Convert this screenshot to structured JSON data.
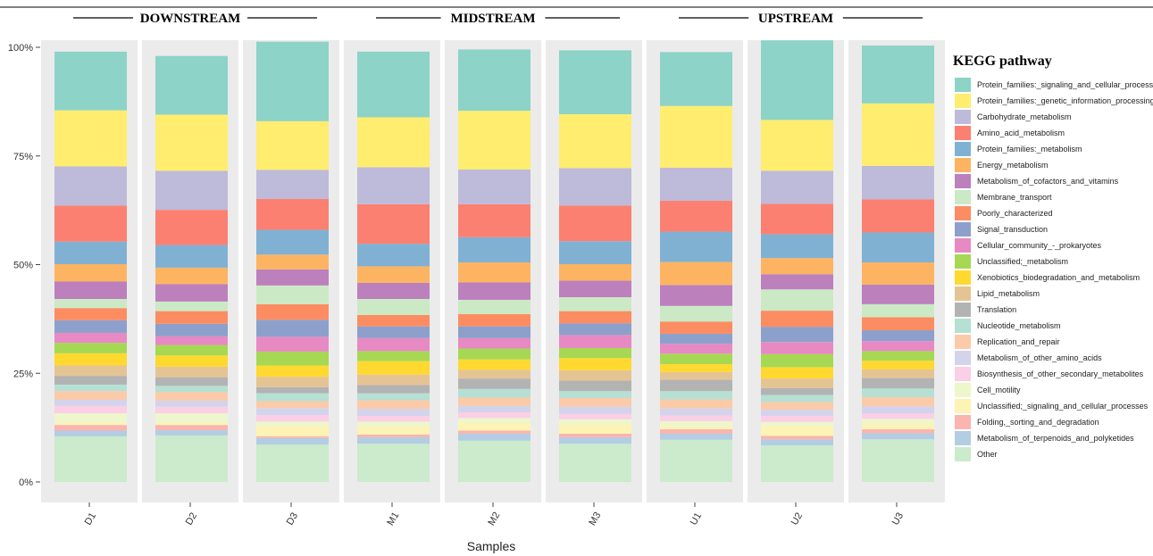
{
  "chart_data": {
    "type": "bar",
    "stacked": true,
    "percent": true,
    "groups": [
      {
        "label": "DOWNSTREAM",
        "samples": [
          "D1",
          "D2",
          "D3"
        ]
      },
      {
        "label": "MIDSTREAM",
        "samples": [
          "M1",
          "M2",
          "M3"
        ]
      },
      {
        "label": "UPSTREAM",
        "samples": [
          "U1",
          "U2",
          "U3"
        ]
      }
    ],
    "categories": [
      "D1",
      "D2",
      "D3",
      "M1",
      "M2",
      "M3",
      "U1",
      "U2",
      "U3"
    ],
    "xlabel": "Samples",
    "ylabel": "",
    "ylim": [
      0,
      100
    ],
    "yticks": [
      "0%",
      "25%",
      "50%",
      "75%",
      "100%"
    ],
    "legend_title": "KEGG pathway",
    "legend_position": "right",
    "series": [
      {
        "name": "Other",
        "color": "#cceacc",
        "values": [
          10.5,
          10.7,
          8.6,
          8.8,
          9.5,
          8.8,
          9.7,
          8.4,
          9.8
        ]
      },
      {
        "name": "Metabolism_of_terpenoids_and_polyketides",
        "color": "#b3cde3",
        "values": [
          1.3,
          1.2,
          1.5,
          1.5,
          1.6,
          1.5,
          1.4,
          1.4,
          1.4
        ]
      },
      {
        "name": "Folding,_sorting_and_degradation",
        "color": "#fbb4ae",
        "values": [
          1.3,
          1.2,
          0.4,
          0.6,
          0.7,
          0.8,
          1.0,
          0.8,
          0.9
        ]
      },
      {
        "name": "Unclassified;_signaling_and_cellular_processes",
        "color": "#fdf3b4",
        "values": [
          0.5,
          0.5,
          2.3,
          1.8,
          1.9,
          2.1,
          0.6,
          2.2,
          1.2
        ]
      },
      {
        "name": "Cell_motility",
        "color": "#eef6cc",
        "values": [
          2.2,
          2.2,
          1.1,
          1.2,
          1.0,
          1.2,
          1.3,
          1.0,
          1.2
        ]
      },
      {
        "name": "Biosynthesis_of_other_secondary_metabolites",
        "color": "#fbcfe6",
        "values": [
          1.7,
          1.5,
          1.5,
          1.3,
          1.3,
          1.3,
          1.3,
          1.4,
          1.3
        ]
      },
      {
        "name": "Metabolism_of_other_amino_acids",
        "color": "#d3d3ec",
        "values": [
          1.4,
          1.4,
          1.6,
          1.6,
          1.5,
          1.6,
          1.6,
          1.4,
          1.6
        ]
      },
      {
        "name": "Replication_and_repair",
        "color": "#fbcaa8",
        "values": [
          2.0,
          2.0,
          1.6,
          2.0,
          1.9,
          2.0,
          2.1,
          1.8,
          2.1
        ]
      },
      {
        "name": "Nucleotide_metabolism",
        "color": "#b5e0d3",
        "values": [
          1.5,
          1.4,
          1.8,
          1.6,
          2.0,
          1.6,
          1.9,
          1.6,
          2.0
        ]
      },
      {
        "name": "Translation",
        "color": "#b3b3b3",
        "values": [
          2.0,
          2.0,
          1.4,
          1.9,
          2.4,
          2.4,
          2.6,
          1.6,
          2.4
        ]
      },
      {
        "name": "Lipid_metabolism",
        "color": "#e5c494",
        "values": [
          2.4,
          2.4,
          2.4,
          2.4,
          2.0,
          2.4,
          1.8,
          2.2,
          2.0
        ]
      },
      {
        "name": "Xenobiotics_biodegradation_and_metabolism",
        "color": "#ffd92f",
        "values": [
          2.8,
          2.6,
          2.6,
          3.1,
          2.4,
          2.8,
          1.8,
          2.6,
          2.0
        ]
      },
      {
        "name": "Unclassified;_metabolism",
        "color": "#a6d854",
        "values": [
          2.4,
          2.4,
          3.2,
          2.3,
          2.5,
          2.3,
          2.4,
          3.0,
          2.2
        ]
      },
      {
        "name": "Cellular_community_-_prokaryotes",
        "color": "#e78ac3",
        "values": [
          2.3,
          2.0,
          3.4,
          3.0,
          2.4,
          3.0,
          2.3,
          2.8,
          2.3
        ]
      },
      {
        "name": "Signal_transduction",
        "color": "#8da0cb",
        "values": [
          2.9,
          2.9,
          3.9,
          2.7,
          2.7,
          2.7,
          2.3,
          3.5,
          2.5
        ]
      },
      {
        "name": "Poorly_characterized",
        "color": "#fc8d62",
        "values": [
          2.8,
          2.9,
          3.6,
          2.6,
          2.8,
          2.8,
          2.8,
          3.7,
          3.0
        ]
      },
      {
        "name": "Membrane_transport",
        "color": "#cce9c5",
        "values": [
          2.1,
          2.2,
          4.3,
          3.7,
          3.3,
          3.2,
          3.6,
          4.9,
          3.0
        ]
      },
      {
        "name": "Metabolism_of_cofactors_and_vitamins",
        "color": "#bc80bd",
        "values": [
          4.0,
          4.0,
          3.7,
          3.7,
          4.0,
          3.8,
          4.8,
          3.5,
          4.5
        ]
      },
      {
        "name": "Energy_metabolism",
        "color": "#fdb462",
        "values": [
          4.0,
          3.8,
          3.4,
          3.8,
          4.6,
          3.8,
          5.3,
          3.7,
          5.1
        ]
      },
      {
        "name": "Protein_families:_metabolism",
        "color": "#80b1d3",
        "values": [
          5.2,
          5.2,
          5.7,
          5.2,
          5.8,
          5.3,
          7.0,
          5.5,
          6.9
        ]
      },
      {
        "name": "Amino_acid_metabolism",
        "color": "#fb8072",
        "values": [
          8.3,
          8.1,
          7.1,
          9.1,
          7.6,
          8.2,
          7.1,
          7.0,
          7.6
        ]
      },
      {
        "name": "Carbohydrate_metabolism",
        "color": "#bebada",
        "values": [
          9.0,
          9.0,
          6.7,
          8.5,
          8.0,
          8.6,
          7.6,
          7.6,
          7.7
        ]
      },
      {
        "name": "Protein_families:_genetic_information_processing",
        "color": "#ffed6f",
        "values": [
          12.9,
          12.9,
          11.2,
          11.5,
          13.5,
          12.4,
          14.2,
          11.7,
          14.4
        ]
      },
      {
        "name": "Protein_families:_signaling_and_cellular_processes",
        "color": "#8dd3c7",
        "values": [
          13.5,
          13.5,
          18.3,
          15.1,
          14.1,
          14.7,
          12.4,
          18.3,
          13.3
        ]
      }
    ],
    "legend_order": [
      "Protein_families:_signaling_and_cellular_processes",
      "Protein_families:_genetic_information_processing",
      "Carbohydrate_metabolism",
      "Amino_acid_metabolism",
      "Protein_families:_metabolism",
      "Energy_metabolism",
      "Metabolism_of_cofactors_and_vitamins",
      "Membrane_transport",
      "Poorly_characterized",
      "Signal_transduction",
      "Cellular_community_-_prokaryotes",
      "Unclassified;_metabolism",
      "Xenobiotics_biodegradation_and_metabolism",
      "Lipid_metabolism",
      "Translation",
      "Nucleotide_metabolism",
      "Replication_and_repair",
      "Metabolism_of_other_amino_acids",
      "Biosynthesis_of_other_secondary_metabolites",
      "Cell_motility",
      "Unclassified;_signaling_and_cellular_processes",
      "Folding,_sorting_and_degradation",
      "Metabolism_of_terpenoids_and_polyketides",
      "Other"
    ]
  }
}
